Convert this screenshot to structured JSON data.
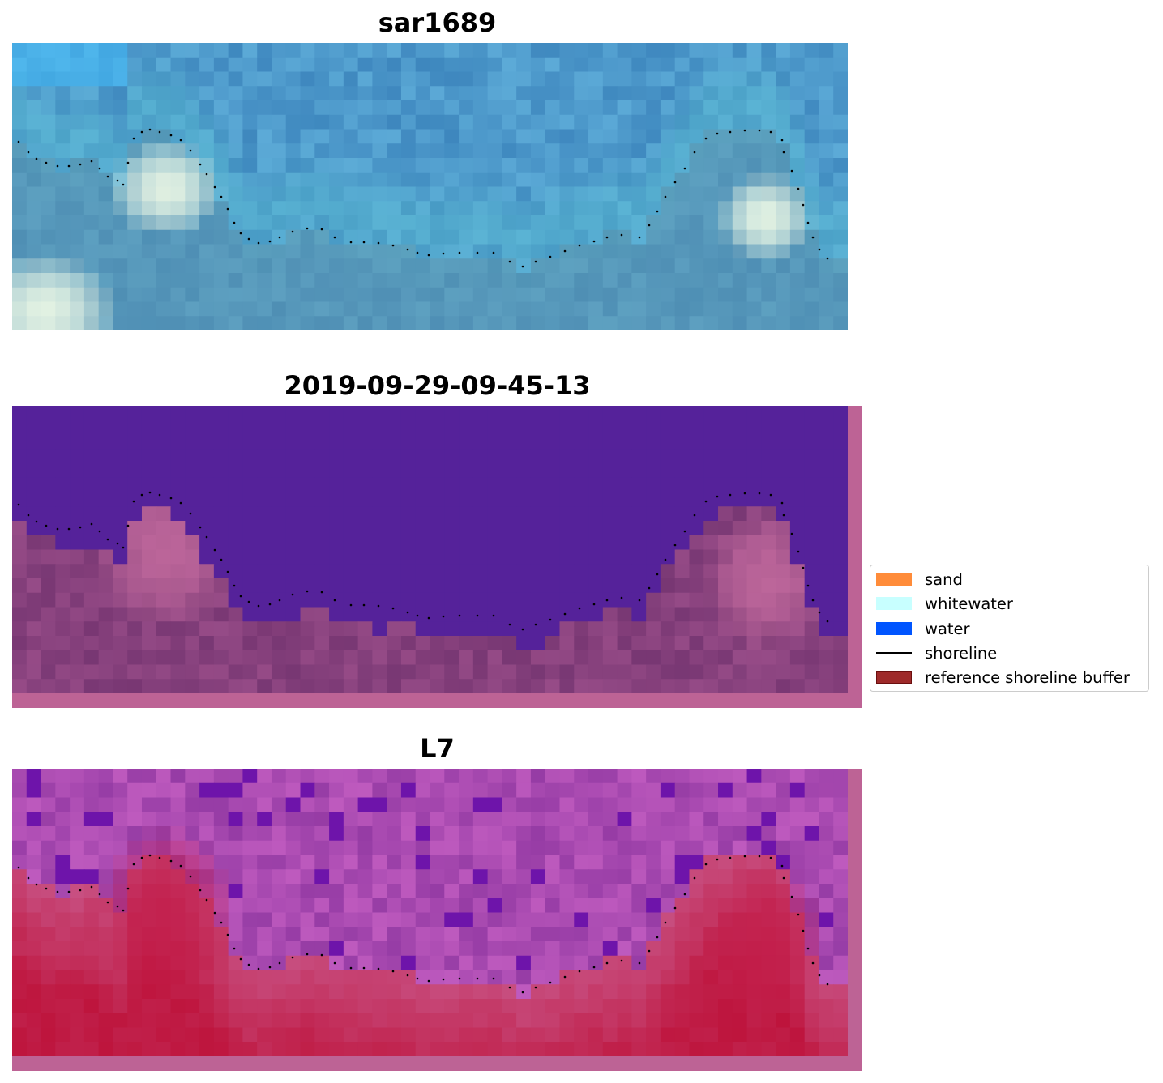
{
  "panels": [
    {
      "id": "rgb",
      "title": "sar1689"
    },
    {
      "id": "classified",
      "title": "2019-09-29-09-45-13"
    },
    {
      "id": "index",
      "title": "L7"
    }
  ],
  "legend": {
    "items": [
      {
        "label": "sand",
        "type": "patch",
        "color": "#ff8c3a"
      },
      {
        "label": "whitewater",
        "type": "patch",
        "color": "#c8ffff"
      },
      {
        "label": "water",
        "type": "patch",
        "color": "#0055ff"
      },
      {
        "label": "shoreline",
        "type": "line",
        "color": "#000000"
      },
      {
        "label": "reference shoreline buffer",
        "type": "patch",
        "color": "#9e2a2a",
        "edge": "#6b0f0f"
      }
    ]
  },
  "colors": {
    "water_class": "#55229a",
    "buffer_overlay": "#bd6395",
    "shoreline_dots": "#000000"
  }
}
